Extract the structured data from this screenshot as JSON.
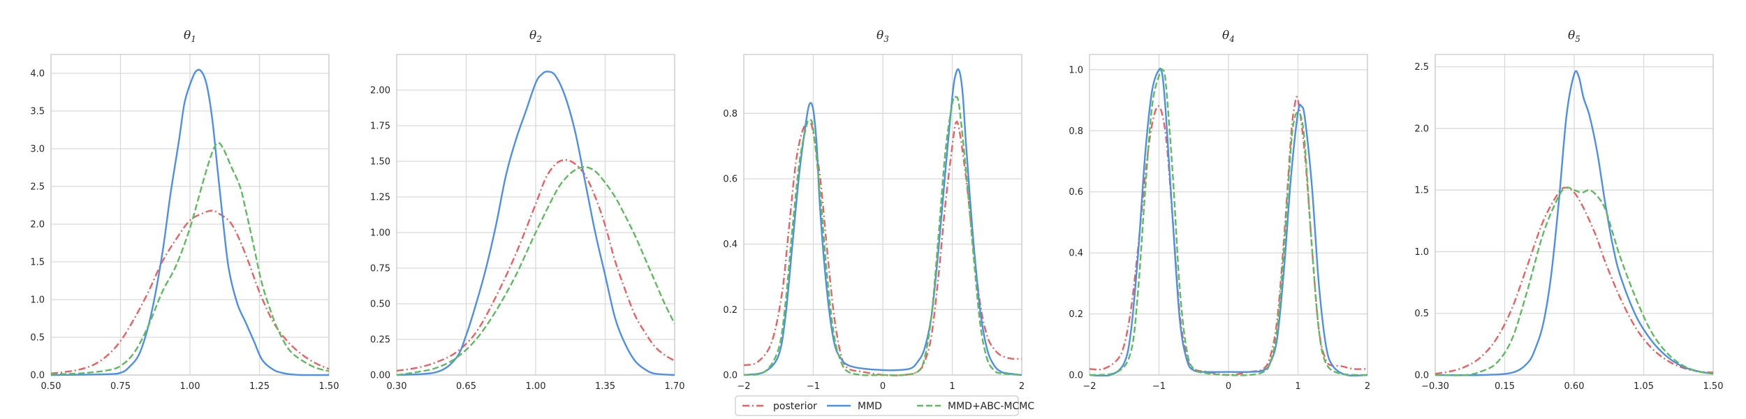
{
  "colors": {
    "posterior": "#ee5e5e",
    "mmd": "#4c8fe8",
    "mmd_abc": "#5cbc5c",
    "grid": "#d9d9d9",
    "text": "#262626"
  },
  "legend": {
    "placement": "bottom-center",
    "entries": [
      {
        "key": "posterior",
        "label": "posterior",
        "style": "dashdot"
      },
      {
        "key": "mmd",
        "label": "MMD",
        "style": "solid"
      },
      {
        "key": "mmd_abc",
        "label": "MMD+ABC-MCMC",
        "style": "dashed"
      }
    ]
  },
  "chart_data": [
    {
      "type": "line",
      "title": {
        "symbol": "θ",
        "sub": "1"
      },
      "xlim": [
        0.5,
        1.5
      ],
      "ylim": [
        0,
        4.25
      ],
      "xticks": [
        0.5,
        0.75,
        1.0,
        1.25,
        1.5
      ],
      "xtick_labels": [
        "0.50",
        "0.75",
        "1.00",
        "1.25",
        "1.50"
      ],
      "yticks": [
        0,
        0.5,
        1.0,
        1.5,
        2.0,
        2.5,
        3.0,
        3.5,
        4.0
      ],
      "ytick_labels": [
        "0.0",
        "0.5",
        "1.0",
        "1.5",
        "2.0",
        "2.5",
        "3.0",
        "3.5",
        "4.0"
      ],
      "grid": true,
      "series": [
        {
          "key": "posterior",
          "x": [
            0.5,
            0.55,
            0.6,
            0.65,
            0.7,
            0.75,
            0.8,
            0.85,
            0.9,
            0.95,
            1.0,
            1.05,
            1.08,
            1.1,
            1.15,
            1.2,
            1.25,
            1.3,
            1.35,
            1.4,
            1.45,
            1.5
          ],
          "y": [
            0.02,
            0.04,
            0.07,
            0.13,
            0.25,
            0.45,
            0.75,
            1.1,
            1.5,
            1.8,
            2.05,
            2.15,
            2.18,
            2.15,
            2.0,
            1.6,
            1.1,
            0.7,
            0.45,
            0.28,
            0.16,
            0.08
          ]
        },
        {
          "key": "mmd",
          "x": [
            0.5,
            0.7,
            0.75,
            0.78,
            0.82,
            0.86,
            0.9,
            0.93,
            0.96,
            0.98,
            1.0,
            1.02,
            1.04,
            1.06,
            1.08,
            1.1,
            1.12,
            1.14,
            1.17,
            1.2,
            1.23,
            1.26,
            1.3,
            1.33,
            1.36,
            1.4,
            1.5
          ],
          "y": [
            0.0,
            0.01,
            0.03,
            0.1,
            0.3,
            0.8,
            1.6,
            2.4,
            3.1,
            3.6,
            3.85,
            4.02,
            4.03,
            3.85,
            3.4,
            2.7,
            2.0,
            1.4,
            0.95,
            0.7,
            0.45,
            0.2,
            0.07,
            0.03,
            0.01,
            0.0,
            0.0
          ]
        },
        {
          "key": "mmd_abc",
          "x": [
            0.5,
            0.6,
            0.7,
            0.75,
            0.8,
            0.85,
            0.9,
            0.95,
            1.0,
            1.05,
            1.08,
            1.1,
            1.12,
            1.15,
            1.18,
            1.2,
            1.23,
            1.26,
            1.3,
            1.33,
            1.36,
            1.4,
            1.45,
            1.5
          ],
          "y": [
            0.01,
            0.02,
            0.06,
            0.12,
            0.3,
            0.65,
            1.1,
            1.45,
            1.95,
            2.6,
            2.95,
            3.08,
            3.0,
            2.75,
            2.5,
            2.2,
            1.7,
            1.2,
            0.75,
            0.5,
            0.32,
            0.2,
            0.1,
            0.05
          ]
        }
      ]
    },
    {
      "type": "line",
      "title": {
        "symbol": "θ",
        "sub": "2"
      },
      "xlim": [
        0.3,
        1.7
      ],
      "ylim": [
        0,
        2.25
      ],
      "xticks": [
        0.3,
        0.65,
        1.0,
        1.35,
        1.7
      ],
      "xtick_labels": [
        "0.30",
        "0.65",
        "1.00",
        "1.35",
        "1.70"
      ],
      "yticks": [
        0,
        0.25,
        0.5,
        0.75,
        1.0,
        1.25,
        1.5,
        1.75,
        2.0
      ],
      "ytick_labels": [
        "0.00",
        "0.25",
        "0.50",
        "0.75",
        "1.00",
        "1.25",
        "1.50",
        "1.75",
        "2.00"
      ],
      "grid": true,
      "series": [
        {
          "key": "posterior",
          "x": [
            0.3,
            0.4,
            0.5,
            0.6,
            0.7,
            0.8,
            0.9,
            1.0,
            1.05,
            1.1,
            1.15,
            1.2,
            1.25,
            1.3,
            1.35,
            1.4,
            1.45,
            1.5,
            1.55,
            1.6,
            1.65,
            1.7
          ],
          "y": [
            0.03,
            0.05,
            0.09,
            0.16,
            0.3,
            0.55,
            0.85,
            1.2,
            1.38,
            1.48,
            1.51,
            1.48,
            1.4,
            1.25,
            1.05,
            0.8,
            0.6,
            0.42,
            0.3,
            0.2,
            0.14,
            0.1
          ]
        },
        {
          "key": "mmd",
          "x": [
            0.3,
            0.5,
            0.6,
            0.65,
            0.7,
            0.75,
            0.8,
            0.85,
            0.9,
            0.95,
            1.0,
            1.03,
            1.06,
            1.1,
            1.15,
            1.2,
            1.25,
            1.3,
            1.35,
            1.4,
            1.45,
            1.5,
            1.55,
            1.6,
            1.7
          ],
          "y": [
            0.0,
            0.02,
            0.12,
            0.28,
            0.5,
            0.75,
            1.05,
            1.4,
            1.65,
            1.85,
            2.05,
            2.11,
            2.13,
            2.1,
            1.95,
            1.7,
            1.35,
            1.0,
            0.7,
            0.4,
            0.22,
            0.1,
            0.04,
            0.01,
            0.0
          ]
        },
        {
          "key": "mmd_abc",
          "x": [
            0.3,
            0.4,
            0.5,
            0.6,
            0.7,
            0.8,
            0.9,
            1.0,
            1.1,
            1.15,
            1.2,
            1.25,
            1.3,
            1.35,
            1.4,
            1.45,
            1.5,
            1.55,
            1.6,
            1.65,
            1.7
          ],
          "y": [
            0.0,
            0.02,
            0.05,
            0.12,
            0.25,
            0.45,
            0.7,
            1.0,
            1.28,
            1.38,
            1.44,
            1.46,
            1.43,
            1.35,
            1.25,
            1.12,
            0.98,
            0.82,
            0.66,
            0.5,
            0.36
          ]
        }
      ]
    },
    {
      "type": "line",
      "title": {
        "symbol": "θ",
        "sub": "3"
      },
      "xlim": [
        -2,
        2
      ],
      "ylim": [
        0,
        0.98
      ],
      "xticks": [
        -2,
        -1,
        0,
        1,
        2
      ],
      "xtick_labels": [
        "−2",
        "−1",
        "0",
        "1",
        "2"
      ],
      "yticks": [
        0,
        0.2,
        0.4,
        0.6,
        0.8
      ],
      "ytick_labels": [
        "0.0",
        "0.2",
        "0.4",
        "0.6",
        "0.8"
      ],
      "grid": true,
      "series": [
        {
          "key": "posterior",
          "x": [
            -2.0,
            -1.8,
            -1.6,
            -1.45,
            -1.35,
            -1.25,
            -1.15,
            -1.05,
            -1.0,
            -0.9,
            -0.8,
            -0.7,
            -0.6,
            -0.5,
            -0.3,
            0.0,
            0.3,
            0.5,
            0.6,
            0.7,
            0.8,
            0.9,
            1.0,
            1.05,
            1.1,
            1.2,
            1.3,
            1.4,
            1.5,
            1.6,
            1.7,
            1.85,
            2.0
          ],
          "y": [
            0.03,
            0.04,
            0.1,
            0.25,
            0.45,
            0.65,
            0.75,
            0.77,
            0.74,
            0.6,
            0.38,
            0.18,
            0.06,
            0.02,
            0.01,
            0.0,
            0.0,
            0.01,
            0.04,
            0.12,
            0.3,
            0.52,
            0.7,
            0.77,
            0.75,
            0.6,
            0.4,
            0.22,
            0.12,
            0.08,
            0.06,
            0.05,
            0.05
          ]
        },
        {
          "key": "mmd",
          "x": [
            -2.0,
            -1.7,
            -1.5,
            -1.4,
            -1.3,
            -1.2,
            -1.1,
            -1.05,
            -1.0,
            -0.95,
            -0.9,
            -0.8,
            -0.7,
            -0.6,
            -0.5,
            -0.3,
            0.0,
            0.2,
            0.4,
            0.5,
            0.6,
            0.7,
            0.8,
            0.9,
            1.0,
            1.05,
            1.1,
            1.15,
            1.2,
            1.3,
            1.4,
            1.5,
            1.6,
            1.7,
            1.8,
            2.0
          ],
          "y": [
            0.0,
            0.01,
            0.06,
            0.18,
            0.4,
            0.62,
            0.78,
            0.83,
            0.81,
            0.7,
            0.5,
            0.25,
            0.1,
            0.05,
            0.03,
            0.02,
            0.015,
            0.015,
            0.02,
            0.04,
            0.08,
            0.18,
            0.38,
            0.62,
            0.85,
            0.92,
            0.93,
            0.86,
            0.7,
            0.42,
            0.2,
            0.08,
            0.03,
            0.01,
            0.005,
            0.0
          ]
        },
        {
          "key": "mmd_abc",
          "x": [
            -2.0,
            -1.7,
            -1.5,
            -1.4,
            -1.3,
            -1.2,
            -1.1,
            -1.05,
            -1.0,
            -0.9,
            -0.8,
            -0.7,
            -0.6,
            -0.5,
            -0.3,
            0.0,
            0.3,
            0.5,
            0.6,
            0.7,
            0.8,
            0.9,
            1.0,
            1.05,
            1.1,
            1.2,
            1.3,
            1.4,
            1.5,
            1.6,
            1.7,
            2.0
          ],
          "y": [
            0.0,
            0.01,
            0.08,
            0.22,
            0.45,
            0.65,
            0.76,
            0.78,
            0.75,
            0.55,
            0.3,
            0.12,
            0.04,
            0.01,
            0.0,
            0.0,
            0.0,
            0.01,
            0.05,
            0.18,
            0.42,
            0.68,
            0.83,
            0.85,
            0.82,
            0.62,
            0.38,
            0.16,
            0.05,
            0.015,
            0.005,
            0.0
          ]
        }
      ]
    },
    {
      "type": "line",
      "title": {
        "symbol": "θ",
        "sub": "4"
      },
      "xlim": [
        -2,
        2
      ],
      "ylim": [
        0,
        1.05
      ],
      "xticks": [
        -2,
        -1,
        0,
        1,
        2
      ],
      "xtick_labels": [
        "−2",
        "−1",
        "0",
        "1",
        "2"
      ],
      "yticks": [
        0,
        0.2,
        0.4,
        0.6,
        0.8,
        1.0
      ],
      "ytick_labels": [
        "0.0",
        "0.2",
        "0.4",
        "0.6",
        "0.8",
        "1.0"
      ],
      "grid": true,
      "series": [
        {
          "key": "posterior",
          "x": [
            -2.0,
            -1.8,
            -1.6,
            -1.5,
            -1.4,
            -1.3,
            -1.2,
            -1.1,
            -1.0,
            -0.9,
            -0.8,
            -0.7,
            -0.6,
            -0.5,
            -0.3,
            0.0,
            0.3,
            0.5,
            0.6,
            0.7,
            0.8,
            0.9,
            0.95,
            1.0,
            1.1,
            1.2,
            1.3,
            1.4,
            1.5,
            1.6,
            1.8,
            2.0
          ],
          "y": [
            0.02,
            0.02,
            0.05,
            0.1,
            0.22,
            0.42,
            0.65,
            0.82,
            0.88,
            0.78,
            0.5,
            0.2,
            0.06,
            0.02,
            0.01,
            0.0,
            0.01,
            0.02,
            0.06,
            0.18,
            0.45,
            0.78,
            0.88,
            0.9,
            0.72,
            0.42,
            0.15,
            0.05,
            0.03,
            0.03,
            0.02,
            0.02
          ]
        },
        {
          "key": "mmd",
          "x": [
            -2.0,
            -1.7,
            -1.5,
            -1.4,
            -1.3,
            -1.2,
            -1.1,
            -1.0,
            -0.95,
            -0.9,
            -0.8,
            -0.7,
            -0.6,
            -0.5,
            -0.3,
            0.0,
            0.3,
            0.5,
            0.6,
            0.7,
            0.8,
            0.9,
            1.0,
            1.05,
            1.1,
            1.2,
            1.3,
            1.4,
            1.5,
            1.7,
            2.0
          ],
          "y": [
            0.0,
            0.0,
            0.04,
            0.15,
            0.4,
            0.72,
            0.93,
            1.0,
            0.98,
            0.85,
            0.5,
            0.18,
            0.05,
            0.015,
            0.01,
            0.01,
            0.01,
            0.015,
            0.04,
            0.12,
            0.35,
            0.65,
            0.86,
            0.88,
            0.84,
            0.62,
            0.3,
            0.1,
            0.03,
            0.0,
            0.0
          ]
        },
        {
          "key": "mmd_abc",
          "x": [
            -2.0,
            -1.6,
            -1.4,
            -1.3,
            -1.2,
            -1.1,
            -1.0,
            -0.95,
            -0.9,
            -0.8,
            -0.7,
            -0.6,
            -0.5,
            -0.3,
            0.0,
            0.3,
            0.5,
            0.6,
            0.7,
            0.8,
            0.9,
            0.95,
            1.0,
            1.05,
            1.1,
            1.2,
            1.3,
            1.4,
            1.6,
            2.0
          ],
          "y": [
            0.0,
            0.01,
            0.08,
            0.28,
            0.6,
            0.88,
            0.98,
            1.0,
            0.95,
            0.65,
            0.28,
            0.08,
            0.02,
            0.005,
            0.0,
            0.0,
            0.01,
            0.04,
            0.15,
            0.42,
            0.75,
            0.84,
            0.86,
            0.84,
            0.75,
            0.42,
            0.15,
            0.04,
            0.005,
            0.0
          ]
        }
      ]
    },
    {
      "type": "line",
      "title": {
        "symbol": "θ",
        "sub": "5"
      },
      "xlim": [
        -0.3,
        1.5
      ],
      "ylim": [
        0,
        2.6
      ],
      "xticks": [
        -0.3,
        0.15,
        0.6,
        1.05,
        1.5
      ],
      "xtick_labels": [
        "−0.30",
        "0.15",
        "0.60",
        "1.05",
        "1.50"
      ],
      "yticks": [
        0,
        0.5,
        1.0,
        1.5,
        2.0,
        2.5
      ],
      "ytick_labels": [
        "0.0",
        "0.5",
        "1.0",
        "1.5",
        "2.0",
        "2.5"
      ],
      "grid": true,
      "series": [
        {
          "key": "posterior",
          "x": [
            -0.3,
            -0.2,
            -0.1,
            0.0,
            0.1,
            0.2,
            0.3,
            0.4,
            0.5,
            0.55,
            0.6,
            0.65,
            0.7,
            0.75,
            0.8,
            0.9,
            1.0,
            1.1,
            1.2,
            1.3,
            1.4,
            1.5
          ],
          "y": [
            0.01,
            0.03,
            0.07,
            0.15,
            0.3,
            0.55,
            0.9,
            1.25,
            1.48,
            1.52,
            1.48,
            1.38,
            1.25,
            1.1,
            0.92,
            0.62,
            0.38,
            0.22,
            0.12,
            0.06,
            0.03,
            0.02
          ]
        },
        {
          "key": "mmd",
          "x": [
            -0.3,
            0.0,
            0.2,
            0.3,
            0.35,
            0.4,
            0.45,
            0.5,
            0.55,
            0.6,
            0.63,
            0.66,
            0.7,
            0.75,
            0.8,
            0.85,
            0.9,
            1.0,
            1.1,
            1.2,
            1.3,
            1.4,
            1.5
          ],
          "y": [
            0.0,
            0.0,
            0.02,
            0.1,
            0.22,
            0.42,
            0.8,
            1.4,
            2.1,
            2.44,
            2.42,
            2.25,
            2.1,
            1.8,
            1.4,
            1.05,
            0.8,
            0.48,
            0.28,
            0.15,
            0.07,
            0.03,
            0.01
          ]
        },
        {
          "key": "mmd_abc",
          "x": [
            -0.3,
            -0.1,
            0.0,
            0.1,
            0.2,
            0.3,
            0.4,
            0.5,
            0.55,
            0.6,
            0.65,
            0.7,
            0.75,
            0.8,
            0.85,
            0.9,
            1.0,
            1.1,
            1.2,
            1.3,
            1.4,
            1.5
          ],
          "y": [
            0.0,
            0.0,
            0.03,
            0.1,
            0.3,
            0.7,
            1.15,
            1.45,
            1.52,
            1.5,
            1.48,
            1.5,
            1.45,
            1.35,
            1.15,
            0.95,
            0.62,
            0.35,
            0.18,
            0.08,
            0.03,
            0.01
          ]
        }
      ]
    }
  ]
}
